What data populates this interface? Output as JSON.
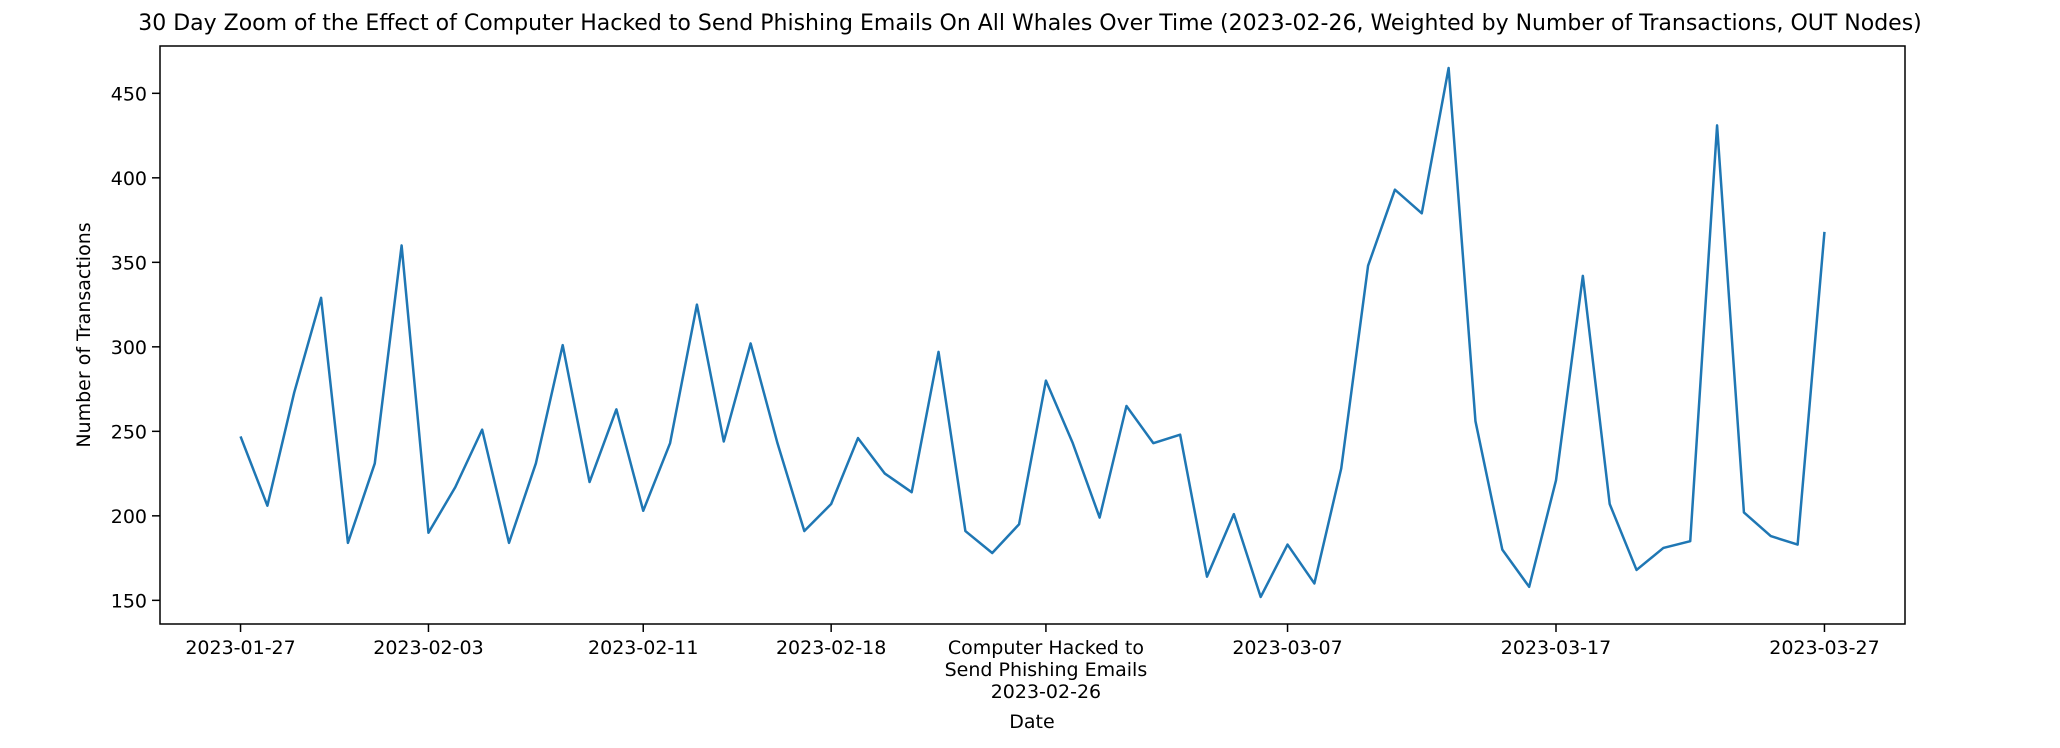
{
  "chart_data": {
    "type": "line",
    "title": "30 Day Zoom of the Effect of Computer Hacked to Send Phishing Emails On All Whales Over Time (2023-02-26, Weighted by Number of Transactions, OUT Nodes)",
    "xlabel": "Date",
    "ylabel": "Number of Transactions",
    "xlim": [
      "2023-01-24",
      "2023-03-30"
    ],
    "ylim": [
      136,
      478
    ],
    "grid": false,
    "series_color": "#1f77b4",
    "x_ticks": [
      "2023-01-27",
      "2023-02-03",
      "2023-02-11",
      "2023-02-18",
      "2023-02-26",
      "2023-03-07",
      "2023-03-17",
      "2023-03-27"
    ],
    "x_tick_labels": [
      [
        "2023-01-27"
      ],
      [
        "2023-02-03"
      ],
      [
        "2023-02-11"
      ],
      [
        "2023-02-18"
      ],
      [
        "Computer Hacked to",
        "Send Phishing Emails",
        "2023-02-26"
      ],
      [
        "2023-03-07"
      ],
      [
        "2023-03-17"
      ],
      [
        "2023-03-27"
      ]
    ],
    "y_ticks": [
      150,
      200,
      250,
      300,
      350,
      400,
      450
    ],
    "series": [
      {
        "x": [
          "2023-01-27",
          "2023-01-28",
          "2023-01-29",
          "2023-01-30",
          "2023-01-31",
          "2023-02-01",
          "2023-02-02",
          "2023-02-03",
          "2023-02-04",
          "2023-02-05",
          "2023-02-06",
          "2023-02-07",
          "2023-02-08",
          "2023-02-09",
          "2023-02-10",
          "2023-02-11",
          "2023-02-12",
          "2023-02-13",
          "2023-02-14",
          "2023-02-15",
          "2023-02-16",
          "2023-02-17",
          "2023-02-18",
          "2023-02-19",
          "2023-02-20",
          "2023-02-21",
          "2023-02-22",
          "2023-02-23",
          "2023-02-24",
          "2023-02-25",
          "2023-02-26",
          "2023-02-27",
          "2023-02-28",
          "2023-03-01",
          "2023-03-02",
          "2023-03-03",
          "2023-03-04",
          "2023-03-05",
          "2023-03-06",
          "2023-03-07",
          "2023-03-08",
          "2023-03-09",
          "2023-03-10",
          "2023-03-11",
          "2023-03-12",
          "2023-03-13",
          "2023-03-14",
          "2023-03-15",
          "2023-03-16",
          "2023-03-17",
          "2023-03-18",
          "2023-03-19",
          "2023-03-20",
          "2023-03-21",
          "2023-03-22",
          "2023-03-23",
          "2023-03-24",
          "2023-03-25",
          "2023-03-26",
          "2023-03-27"
        ],
        "values": [
          247,
          206,
          273,
          329,
          184,
          231,
          360,
          190,
          217,
          251,
          184,
          231,
          301,
          220,
          263,
          203,
          243,
          325,
          244,
          302,
          243,
          191,
          207,
          246,
          225,
          214,
          297,
          191,
          178,
          195,
          280,
          243,
          199,
          265,
          243,
          248,
          164,
          201,
          152,
          183,
          160,
          228,
          348,
          393,
          379,
          465,
          256,
          180,
          158,
          221,
          342,
          207,
          168,
          181,
          185,
          431,
          202,
          188,
          183,
          368
        ]
      }
    ]
  }
}
